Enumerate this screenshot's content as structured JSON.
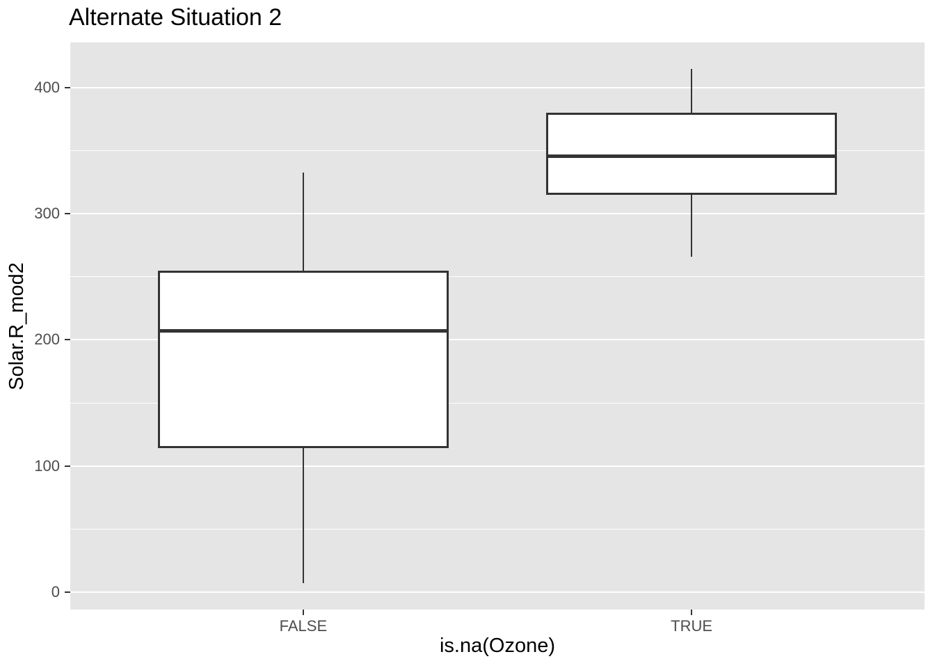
{
  "title": "Alternate Situation 2",
  "colors": {
    "page_bg": "#FFFFFF",
    "panel_bg": "#E5E5E5",
    "gridline": "#FFFFFF",
    "box_stroke": "#333333",
    "box_fill": "#FFFFFF",
    "axis_text": "#4D4D4D",
    "title_text": "#000000",
    "tick_mark": "#333333"
  },
  "chart_data": {
    "type": "boxplot",
    "title": "Alternate Situation 2",
    "xlabel": "is.na(Ozone)",
    "ylabel": "Solar.R_mod2",
    "categories": [
      "FALSE",
      "TRUE"
    ],
    "y_ticks": [
      0,
      100,
      200,
      300,
      400
    ],
    "y_minor_gridlines": [
      50,
      150,
      250,
      350
    ],
    "ylim": [
      -14,
      436
    ],
    "grid": "on",
    "legend": "none",
    "box_orientation": "vertical",
    "series": [
      {
        "category": "FALSE",
        "whisker_low": 7,
        "q1": 114,
        "median": 207,
        "q3": 255,
        "whisker_high": 333,
        "outliers": []
      },
      {
        "category": "TRUE",
        "whisker_low": 266,
        "q1": 315,
        "median": 346,
        "q3": 380,
        "whisker_high": 415,
        "outliers": []
      }
    ]
  }
}
